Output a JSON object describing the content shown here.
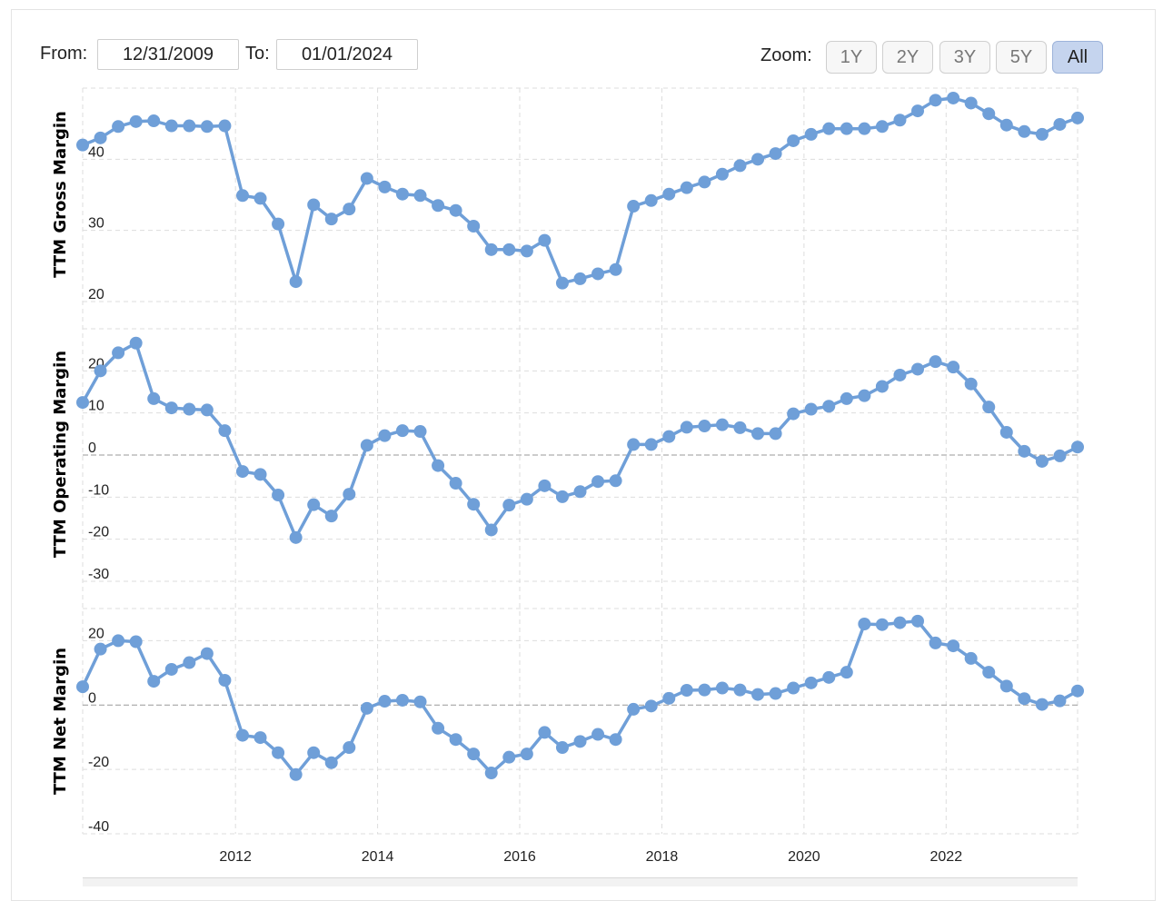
{
  "controls": {
    "from_label": "From:",
    "from_value": "12/31/2009",
    "to_label": "To:",
    "to_value": "01/01/2024",
    "zoom_label": "Zoom:",
    "zoom_buttons": [
      "1Y",
      "2Y",
      "3Y",
      "5Y",
      "All"
    ],
    "zoom_active": "All"
  },
  "colors": {
    "series": "#6f9fd8",
    "grid": "#dddddd",
    "zero_line": "#999999",
    "active_zoom": "#c5d4ee"
  },
  "chart_data": [
    {
      "type": "line",
      "ylabel": "TTM Gross Margin",
      "yticks": [
        20,
        30,
        40
      ],
      "ylim": [
        20,
        50
      ],
      "xlim": [
        2009.85,
        2023.85
      ],
      "xticks": [
        2012,
        2014,
        2016,
        2018,
        2020,
        2022
      ],
      "x": [
        2009.85,
        2010.1,
        2010.35,
        2010.6,
        2010.85,
        2011.1,
        2011.35,
        2011.6,
        2011.85,
        2012.1,
        2012.35,
        2012.6,
        2012.85,
        2013.1,
        2013.35,
        2013.6,
        2013.85,
        2014.1,
        2014.35,
        2014.6,
        2014.85,
        2015.1,
        2015.35,
        2015.6,
        2015.85,
        2016.1,
        2016.35,
        2016.6,
        2016.85,
        2017.1,
        2017.35,
        2017.6,
        2017.85,
        2018.1,
        2018.35,
        2018.6,
        2018.85,
        2019.1,
        2019.35,
        2019.6,
        2019.85,
        2020.1,
        2020.35,
        2020.6,
        2020.85,
        2021.1,
        2021.35,
        2021.6,
        2021.85,
        2022.1,
        2022.35,
        2022.6,
        2022.85,
        2023.1,
        2023.35,
        2023.6,
        2023.85
      ],
      "values": [
        42,
        43,
        44.6,
        45.3,
        45.4,
        44.7,
        44.7,
        44.6,
        44.7,
        34.9,
        34.5,
        30.9,
        22.8,
        33.6,
        31.6,
        33,
        37.3,
        36.1,
        35.1,
        34.9,
        33.5,
        32.8,
        30.6,
        27.3,
        27.3,
        27.1,
        28.6,
        22.6,
        23.2,
        23.9,
        24.5,
        33.4,
        34.2,
        35.1,
        36,
        36.8,
        37.9,
        39.1,
        40,
        40.8,
        42.6,
        43.5,
        44.3,
        44.3,
        44.3,
        44.6,
        45.5,
        46.8,
        48.3,
        48.6,
        47.9,
        46.4,
        44.8,
        43.9,
        43.5,
        44.9,
        45.8
      ]
    },
    {
      "type": "line",
      "ylabel": "TTM Operating Margin",
      "yticks": [
        -30,
        -20,
        -10,
        0,
        10,
        20
      ],
      "ylim": [
        -30,
        30
      ],
      "xlim": [
        2009.85,
        2023.85
      ],
      "xticks": [
        2012,
        2014,
        2016,
        2018,
        2020,
        2022
      ],
      "x": [
        2009.85,
        2010.1,
        2010.35,
        2010.6,
        2010.85,
        2011.1,
        2011.35,
        2011.6,
        2011.85,
        2012.1,
        2012.35,
        2012.6,
        2012.85,
        2013.1,
        2013.35,
        2013.6,
        2013.85,
        2014.1,
        2014.35,
        2014.6,
        2014.85,
        2015.1,
        2015.35,
        2015.6,
        2015.85,
        2016.1,
        2016.35,
        2016.6,
        2016.85,
        2017.1,
        2017.35,
        2017.6,
        2017.85,
        2018.1,
        2018.35,
        2018.6,
        2018.85,
        2019.1,
        2019.35,
        2019.6,
        2019.85,
        2020.1,
        2020.35,
        2020.6,
        2020.85,
        2021.1,
        2021.35,
        2021.6,
        2021.85,
        2022.1,
        2022.35,
        2022.6,
        2022.85,
        2023.1,
        2023.35,
        2023.6,
        2023.85
      ],
      "values": [
        12.5,
        20,
        24.3,
        26.6,
        13.4,
        11.2,
        10.9,
        10.7,
        5.8,
        -3.9,
        -4.6,
        -9.5,
        -19.6,
        -11.8,
        -14.5,
        -9.3,
        2.3,
        4.6,
        5.8,
        5.6,
        -2.5,
        -6.7,
        -11.7,
        -17.8,
        -11.9,
        -10.5,
        -7.3,
        -9.9,
        -8.7,
        -6.3,
        -6.1,
        2.5,
        2.5,
        4.4,
        6.6,
        6.9,
        7.2,
        6.5,
        5.1,
        5.1,
        9.8,
        10.9,
        11.6,
        13.4,
        14.1,
        16.3,
        19,
        20.4,
        22.2,
        20.9,
        16.9,
        11.4,
        5.4,
        0.9,
        -1.5,
        -0.2,
        1.9
      ]
    },
    {
      "type": "line",
      "ylabel": "TTM Net Margin",
      "yticks": [
        -40,
        -20,
        0,
        20
      ],
      "ylim": [
        -40,
        30
      ],
      "xlim": [
        2009.85,
        2023.85
      ],
      "xticks": [
        2012,
        2014,
        2016,
        2018,
        2020,
        2022
      ],
      "x": [
        2009.85,
        2010.1,
        2010.35,
        2010.6,
        2010.85,
        2011.1,
        2011.35,
        2011.6,
        2011.85,
        2012.1,
        2012.35,
        2012.6,
        2012.85,
        2013.1,
        2013.35,
        2013.6,
        2013.85,
        2014.1,
        2014.35,
        2014.6,
        2014.85,
        2015.1,
        2015.35,
        2015.6,
        2015.85,
        2016.1,
        2016.35,
        2016.6,
        2016.85,
        2017.1,
        2017.35,
        2017.6,
        2017.85,
        2018.1,
        2018.35,
        2018.6,
        2018.85,
        2019.1,
        2019.35,
        2019.6,
        2019.85,
        2020.1,
        2020.35,
        2020.6,
        2020.85,
        2021.1,
        2021.35,
        2021.6,
        2021.85,
        2022.1,
        2022.35,
        2022.6,
        2022.85,
        2023.1,
        2023.35,
        2023.6,
        2023.85
      ],
      "values": [
        5.7,
        17.4,
        20,
        19.7,
        7.4,
        11.1,
        13.2,
        16,
        7.7,
        -9.4,
        -10.1,
        -14.8,
        -21.6,
        -14.8,
        -17.9,
        -13.2,
        -1,
        1.2,
        1.5,
        1,
        -7.2,
        -10.7,
        -15.2,
        -21.1,
        -16.2,
        -15.2,
        -8.5,
        -13.2,
        -11.3,
        -9.1,
        -10.7,
        -1.3,
        -0.3,
        2.1,
        4.6,
        4.7,
        5.3,
        4.7,
        3.3,
        3.6,
        5.3,
        6.9,
        8.6,
        10.2,
        25.2,
        25,
        25.6,
        26.1,
        19.3,
        18.4,
        14.5,
        10.2,
        5.9,
        2,
        0.2,
        1.3,
        4.4
      ]
    }
  ]
}
